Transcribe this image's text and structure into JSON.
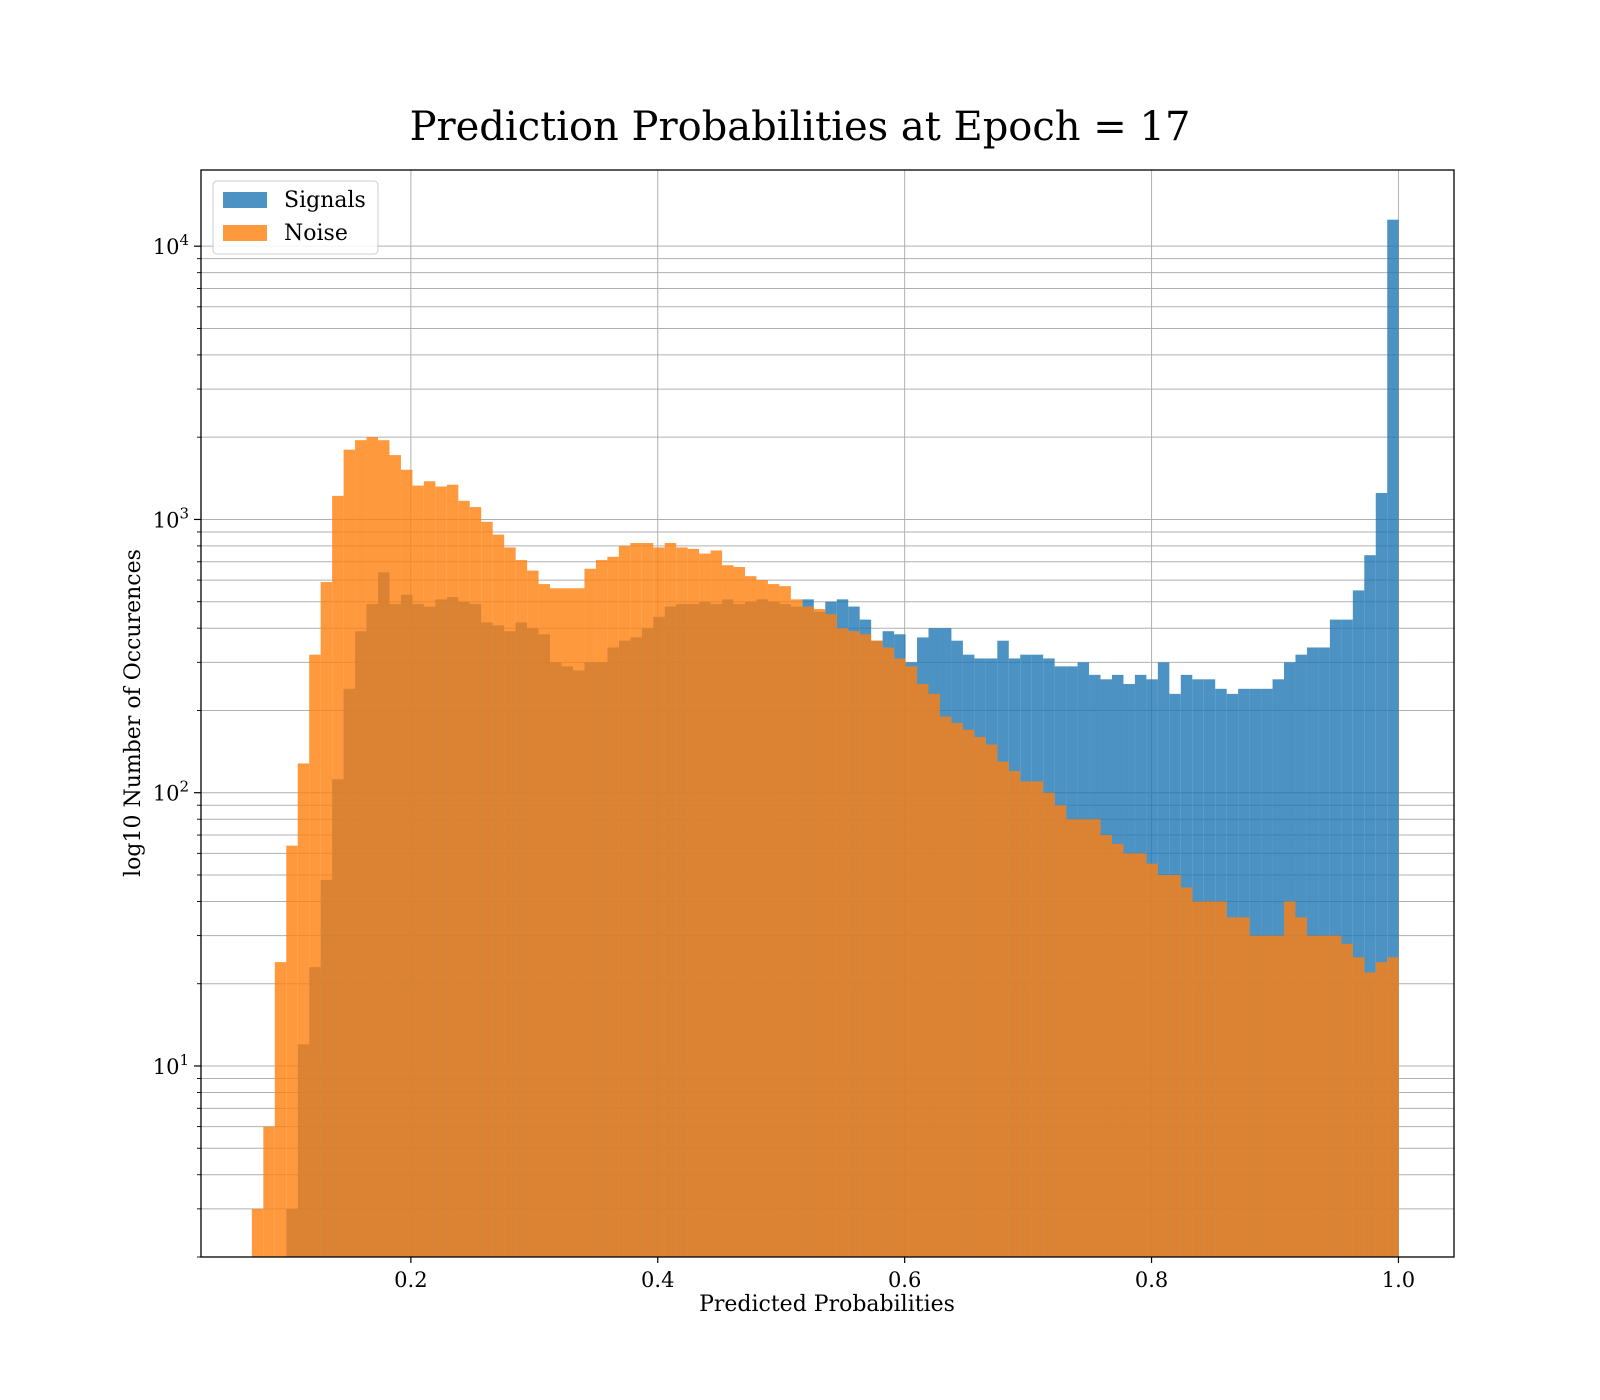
{
  "chart_data": {
    "type": "bar",
    "title": "Prediction Probabilities at Epoch = 17",
    "xlabel": "Predicted Probabilities",
    "ylabel": "log10 Number of Occurences",
    "y_scale": "log",
    "xlim": [
      0.03,
      1.045
    ],
    "ylim": [
      2,
      19000
    ],
    "x_ticks": [
      "0.2",
      "0.4",
      "0.6",
      "0.8",
      "1.0"
    ],
    "y_ticks": [
      {
        "base": "10",
        "exp": "1",
        "value": 10
      },
      {
        "base": "10",
        "exp": "2",
        "value": 100
      },
      {
        "base": "10",
        "exp": "3",
        "value": 1000
      },
      {
        "base": "10",
        "exp": "4",
        "value": 10000
      }
    ],
    "grid": true,
    "legend_position": "upper-left",
    "bins": {
      "start": 0.0712,
      "step": 0.00929,
      "count": 100
    },
    "series": [
      {
        "name": "Signals",
        "color": "#1f77b4",
        "values": [
          0,
          0,
          0,
          3,
          12,
          23,
          48,
          112,
          240,
          390,
          490,
          640,
          490,
          530,
          490,
          480,
          510,
          520,
          500,
          490,
          420,
          410,
          390,
          420,
          400,
          380,
          300,
          290,
          280,
          300,
          300,
          340,
          360,
          370,
          400,
          440,
          480,
          490,
          490,
          500,
          490,
          510,
          490,
          500,
          510,
          500,
          490,
          480,
          510,
          460,
          500,
          510,
          480,
          430,
          360,
          390,
          380,
          300,
          370,
          400,
          400,
          360,
          320,
          310,
          310,
          360,
          310,
          320,
          320,
          310,
          290,
          290,
          300,
          270,
          260,
          270,
          250,
          270,
          260,
          300,
          230,
          270,
          260,
          260,
          240,
          230,
          240,
          240,
          240,
          260,
          300,
          320,
          340,
          340,
          430,
          430,
          550,
          740,
          1250,
          12500
        ]
      },
      {
        "name": "Noise",
        "color": "#ff7f0e",
        "values": [
          3,
          6,
          24,
          64,
          128,
          320,
          590,
          1220,
          1800,
          1950,
          2000,
          1950,
          1720,
          1520,
          1330,
          1380,
          1320,
          1340,
          1170,
          1110,
          980,
          880,
          790,
          710,
          650,
          580,
          560,
          560,
          560,
          660,
          710,
          730,
          800,
          820,
          820,
          790,
          820,
          790,
          780,
          750,
          770,
          680,
          670,
          620,
          600,
          580,
          570,
          510,
          480,
          470,
          450,
          400,
          390,
          380,
          360,
          340,
          310,
          290,
          250,
          230,
          190,
          180,
          170,
          160,
          150,
          130,
          120,
          110,
          110,
          100,
          90,
          80,
          80,
          80,
          70,
          65,
          60,
          60,
          55,
          50,
          50,
          45,
          40,
          40,
          40,
          35,
          35,
          30,
          30,
          30,
          40,
          35,
          30,
          30,
          30,
          28,
          25,
          22,
          24,
          25
        ]
      }
    ]
  }
}
